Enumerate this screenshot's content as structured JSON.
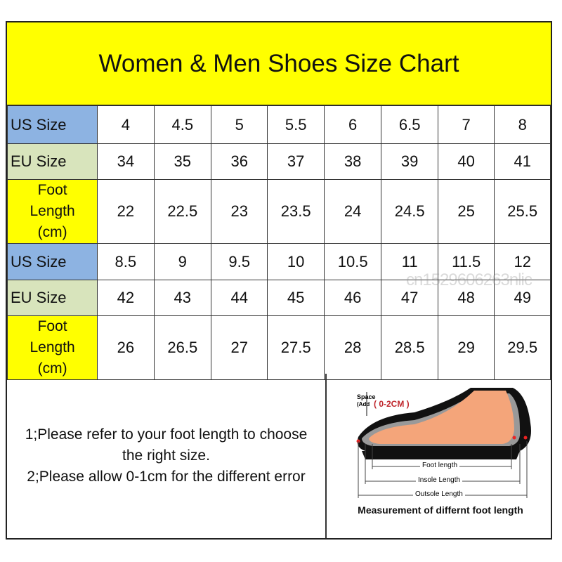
{
  "title": "Women & Men Shoes Size Chart",
  "rows": [
    {
      "label": "US Size",
      "type": "us",
      "values": [
        "4",
        "4.5",
        "5",
        "5.5",
        "6",
        "6.5",
        "7",
        "8"
      ]
    },
    {
      "label": "EU Size",
      "type": "eu",
      "values": [
        "34",
        "35",
        "36",
        "37",
        "38",
        "39",
        "40",
        "41"
      ]
    },
    {
      "label": "Foot Length (cm)",
      "label_lines": [
        "Foot",
        "Length",
        "(cm)"
      ],
      "type": "fl",
      "values": [
        "22",
        "22.5",
        "23",
        "23.5",
        "24",
        "24.5",
        "25",
        "25.5"
      ]
    },
    {
      "label": "US Size",
      "type": "us",
      "values": [
        "8.5",
        "9",
        "9.5",
        "10",
        "10.5",
        "11",
        "11.5",
        "12"
      ]
    },
    {
      "label": "EU Size",
      "type": "eu",
      "values": [
        "42",
        "43",
        "44",
        "45",
        "46",
        "47",
        "48",
        "49"
      ]
    },
    {
      "label": "Foot Length (cm)",
      "label_lines": [
        "Foot",
        "Length",
        "(cm)"
      ],
      "type": "fl",
      "values": [
        "26",
        "26.5",
        "27",
        "27.5",
        "28",
        "28.5",
        "29",
        "29.5"
      ]
    }
  ],
  "notes": [
    "1;Please refer to your foot length to choose the right size.",
    "2;Please allow 0-1cm for the different error"
  ],
  "illustration": {
    "space_label": "Space",
    "add_label": "(Add",
    "space_value": "( 0-2CM )",
    "foot_length": "Foot length",
    "insole_length": "Insole Length",
    "outsole_length": "Outsole Length",
    "caption": "Measurement of differnt foot length"
  },
  "watermark": "cn1529606263nlic",
  "colors": {
    "title_bg": "#ffff00",
    "us_bg": "#8db3e2",
    "eu_bg": "#d8e4bc",
    "foot_bg": "#ffff00"
  }
}
